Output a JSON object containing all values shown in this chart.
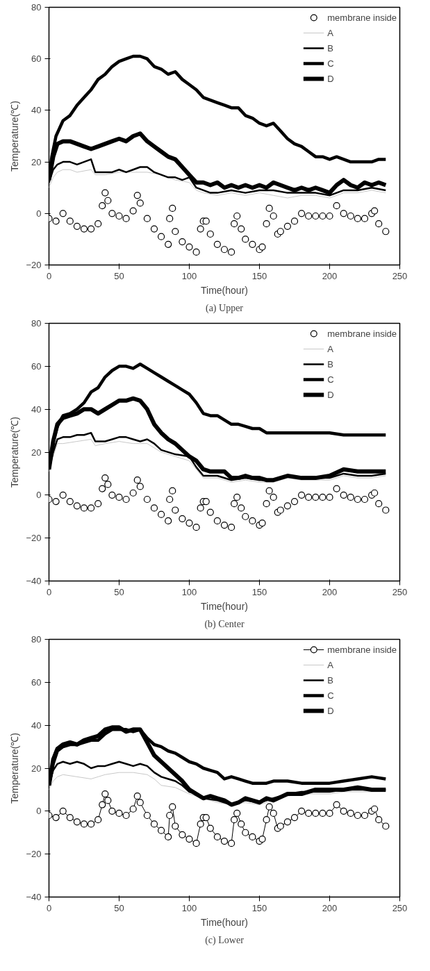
{
  "chart_data": [
    {
      "type": "line",
      "title": "(a) Upper",
      "xlabel": "Time(hour)",
      "ylabel": "Temperature(℃)",
      "xlim": [
        0,
        250
      ],
      "ylim": [
        -20,
        80
      ],
      "xticks": [
        0,
        50,
        100,
        150,
        200,
        250
      ],
      "yticks": [
        -20,
        0,
        20,
        40,
        60,
        80
      ],
      "grid": false,
      "legend": "top right",
      "series": [
        {
          "name": "membrane inside",
          "type": "scatter",
          "marker": "circle",
          "color": "#000000",
          "x": [
            0,
            5,
            10,
            15,
            20,
            25,
            30,
            35,
            38,
            40,
            42,
            45,
            50,
            55,
            60,
            63,
            65,
            70,
            75,
            80,
            85,
            86,
            88,
            90,
            95,
            100,
            105,
            108,
            110,
            112,
            115,
            120,
            125,
            130,
            132,
            134,
            137,
            140,
            145,
            150,
            152,
            155,
            157,
            160,
            163,
            165,
            170,
            175,
            180,
            185,
            190,
            195,
            200,
            205,
            210,
            215,
            220,
            225,
            230,
            232,
            235,
            240
          ],
          "values": [
            -2,
            -3,
            0,
            -3,
            -5,
            -6,
            -6,
            -4,
            3,
            8,
            5,
            0,
            -1,
            -2,
            1,
            7,
            4,
            -2,
            -6,
            -9,
            -12,
            -2,
            2,
            -7,
            -11,
            -13,
            -15,
            -6,
            -3,
            -3,
            -8,
            -12,
            -14,
            -15,
            -4,
            -1,
            -6,
            -10,
            -12,
            -14,
            -13,
            -4,
            2,
            -1,
            -8,
            -7,
            -5,
            -3,
            0,
            -1,
            -1,
            -1,
            -1,
            3,
            0,
            -1,
            -2,
            -2,
            0,
            1,
            -4,
            -7
          ]
        },
        {
          "name": "A",
          "color": "#c8c8c8",
          "x": [
            0,
            3,
            6,
            10,
            15,
            20,
            30,
            33,
            40,
            50,
            60,
            70,
            80,
            90,
            100,
            105,
            110,
            120,
            130,
            140,
            150,
            160,
            170,
            180,
            190,
            200,
            210,
            220,
            230,
            240
          ],
          "values": [
            10,
            14,
            16,
            17,
            17,
            16,
            17,
            15,
            15,
            16,
            16,
            16,
            15,
            13,
            12,
            9,
            8,
            7,
            8,
            7,
            8,
            7,
            6,
            7,
            7,
            6,
            8,
            8,
            9,
            8
          ]
        },
        {
          "name": "B",
          "color": "#000000",
          "x": [
            0,
            3,
            6,
            10,
            15,
            20,
            25,
            30,
            33,
            38,
            45,
            50,
            55,
            60,
            65,
            70,
            75,
            80,
            85,
            90,
            95,
            100,
            105,
            110,
            115,
            120,
            130,
            140,
            150,
            160,
            170,
            180,
            190,
            200,
            210,
            220,
            230,
            240
          ],
          "values": [
            12,
            17,
            19,
            20,
            20,
            19,
            20,
            21,
            16,
            16,
            16,
            17,
            16,
            17,
            18,
            18,
            16,
            15,
            14,
            14,
            13,
            14,
            10,
            9,
            8,
            8,
            9,
            8,
            9,
            9,
            8,
            8,
            8,
            7,
            9,
            9,
            10,
            9
          ]
        },
        {
          "name": "C",
          "color": "#000000",
          "x": [
            0,
            2,
            5,
            10,
            15,
            20,
            25,
            30,
            35,
            40,
            45,
            50,
            55,
            60,
            65,
            70,
            75,
            80,
            85,
            90,
            95,
            100,
            105,
            110,
            115,
            120,
            125,
            130,
            135,
            140,
            145,
            150,
            155,
            160,
            165,
            170,
            175,
            180,
            185,
            190,
            195,
            200,
            205,
            210,
            215,
            220,
            225,
            230,
            235,
            240
          ],
          "values": [
            14,
            22,
            30,
            36,
            38,
            42,
            45,
            48,
            52,
            54,
            57,
            59,
            60,
            61,
            61,
            60,
            57,
            56,
            54,
            55,
            52,
            50,
            48,
            45,
            44,
            43,
            42,
            41,
            41,
            38,
            37,
            35,
            34,
            35,
            32,
            29,
            27,
            26,
            24,
            22,
            22,
            21,
            22,
            21,
            20,
            20,
            20,
            20,
            21,
            21
          ]
        },
        {
          "name": "D",
          "color": "#000000",
          "x": [
            0,
            3,
            6,
            10,
            15,
            20,
            25,
            30,
            35,
            40,
            45,
            50,
            55,
            60,
            65,
            70,
            75,
            80,
            85,
            90,
            95,
            100,
            105,
            110,
            115,
            120,
            125,
            130,
            135,
            140,
            145,
            150,
            155,
            160,
            165,
            170,
            175,
            180,
            185,
            190,
            195,
            200,
            205,
            210,
            215,
            220,
            225,
            230,
            235,
            240
          ],
          "values": [
            13,
            22,
            27,
            28,
            28,
            27,
            26,
            25,
            26,
            27,
            28,
            29,
            28,
            30,
            31,
            28,
            26,
            24,
            22,
            21,
            18,
            15,
            12,
            12,
            11,
            12,
            10,
            11,
            10,
            11,
            10,
            11,
            10,
            12,
            11,
            10,
            9,
            10,
            9,
            10,
            9,
            8,
            11,
            13,
            11,
            10,
            12,
            11,
            12,
            11
          ]
        }
      ]
    },
    {
      "type": "line",
      "title": "(b) Center",
      "xlabel": "Time(hour)",
      "ylabel": "Temperature(℃)",
      "xlim": [
        0,
        250
      ],
      "ylim": [
        -40,
        80
      ],
      "xticks": [
        0,
        50,
        100,
        150,
        200,
        250
      ],
      "yticks": [
        -40,
        -20,
        0,
        20,
        40,
        60,
        80
      ],
      "grid": false,
      "legend": "top right",
      "series": [
        {
          "name": "membrane inside",
          "type": "scatter",
          "marker": "circle",
          "color": "#000000",
          "x": [
            0,
            5,
            10,
            15,
            20,
            25,
            30,
            35,
            38,
            40,
            42,
            45,
            50,
            55,
            60,
            63,
            65,
            70,
            75,
            80,
            85,
            86,
            88,
            90,
            95,
            100,
            105,
            108,
            110,
            112,
            115,
            120,
            125,
            130,
            132,
            134,
            137,
            140,
            145,
            150,
            152,
            155,
            157,
            160,
            163,
            165,
            170,
            175,
            180,
            185,
            190,
            195,
            200,
            205,
            210,
            215,
            220,
            225,
            230,
            232,
            235,
            240
          ],
          "values": [
            -2,
            -3,
            0,
            -3,
            -5,
            -6,
            -6,
            -4,
            3,
            8,
            5,
            0,
            -1,
            -2,
            1,
            7,
            4,
            -2,
            -6,
            -9,
            -12,
            -2,
            2,
            -7,
            -11,
            -13,
            -15,
            -6,
            -3,
            -3,
            -8,
            -12,
            -14,
            -15,
            -4,
            -1,
            -6,
            -10,
            -12,
            -14,
            -13,
            -4,
            2,
            -1,
            -8,
            -7,
            -5,
            -3,
            0,
            -1,
            -1,
            -1,
            -1,
            3,
            0,
            -1,
            -2,
            -2,
            0,
            1,
            -4,
            -7
          ]
        },
        {
          "name": "A",
          "color": "#c8c8c8",
          "x": [
            0,
            3,
            6,
            10,
            20,
            30,
            33,
            40,
            50,
            60,
            70,
            80,
            90,
            100,
            105,
            110,
            120,
            130,
            140,
            150,
            160,
            170,
            180,
            190,
            200,
            210,
            220,
            230,
            240
          ],
          "values": [
            11,
            18,
            24,
            24,
            25,
            26,
            23,
            24,
            25,
            24,
            24,
            20,
            18,
            16,
            12,
            8,
            8,
            6,
            7,
            6,
            6,
            8,
            7,
            7,
            7,
            9,
            8,
            8,
            9
          ]
        },
        {
          "name": "B",
          "color": "#000000",
          "x": [
            0,
            3,
            6,
            10,
            15,
            20,
            25,
            30,
            33,
            40,
            45,
            50,
            55,
            60,
            65,
            70,
            75,
            80,
            90,
            100,
            105,
            110,
            120,
            130,
            140,
            150,
            160,
            170,
            180,
            190,
            200,
            210,
            220,
            230,
            240
          ],
          "values": [
            12,
            20,
            26,
            27,
            27,
            28,
            28,
            29,
            25,
            25,
            26,
            27,
            27,
            26,
            25,
            26,
            24,
            21,
            19,
            18,
            13,
            9,
            9,
            7,
            8,
            7,
            7,
            9,
            8,
            8,
            8,
            10,
            9,
            9,
            10
          ]
        },
        {
          "name": "C",
          "color": "#000000",
          "x": [
            0,
            3,
            6,
            10,
            15,
            20,
            25,
            30,
            35,
            40,
            45,
            50,
            55,
            60,
            65,
            70,
            75,
            80,
            85,
            90,
            95,
            100,
            105,
            110,
            115,
            120,
            125,
            130,
            135,
            140,
            145,
            150,
            155,
            160,
            170,
            180,
            190,
            200,
            210,
            220,
            230,
            240
          ],
          "values": [
            14,
            25,
            32,
            37,
            38,
            40,
            43,
            48,
            50,
            55,
            58,
            60,
            60,
            59,
            61,
            59,
            57,
            55,
            53,
            51,
            49,
            47,
            43,
            38,
            37,
            37,
            35,
            33,
            33,
            32,
            31,
            31,
            29,
            29,
            29,
            29,
            29,
            29,
            28,
            28,
            28,
            28
          ]
        },
        {
          "name": "D",
          "color": "#000000",
          "x": [
            0,
            3,
            6,
            10,
            15,
            20,
            25,
            30,
            35,
            40,
            45,
            50,
            55,
            60,
            65,
            70,
            75,
            80,
            85,
            90,
            95,
            100,
            105,
            110,
            115,
            120,
            125,
            130,
            135,
            140,
            145,
            150,
            155,
            160,
            170,
            180,
            190,
            200,
            210,
            220,
            230,
            240
          ],
          "values": [
            12,
            25,
            33,
            36,
            37,
            38,
            40,
            40,
            38,
            40,
            42,
            44,
            44,
            45,
            44,
            40,
            33,
            29,
            26,
            24,
            21,
            18,
            16,
            12,
            11,
            11,
            11,
            8,
            8,
            9,
            8,
            8,
            7,
            7,
            9,
            8,
            8,
            9,
            12,
            11,
            11,
            11
          ]
        }
      ]
    },
    {
      "type": "line",
      "title": "(c) Lower",
      "xlabel": "Time(hour)",
      "ylabel": "Temperature(℃)",
      "xlim": [
        0,
        250
      ],
      "ylim": [
        -40,
        80
      ],
      "xticks": [
        0,
        50,
        100,
        150,
        200,
        250
      ],
      "yticks": [
        -40,
        -20,
        0,
        20,
        40,
        60,
        80
      ],
      "grid": false,
      "legend": "top right",
      "series": [
        {
          "name": "membrane inside",
          "marker": "circle",
          "color": "#000000",
          "x": [
            0,
            5,
            10,
            15,
            20,
            25,
            30,
            35,
            38,
            40,
            42,
            45,
            50,
            55,
            60,
            63,
            65,
            70,
            75,
            80,
            85,
            86,
            88,
            90,
            95,
            100,
            105,
            108,
            110,
            112,
            115,
            120,
            125,
            130,
            132,
            134,
            137,
            140,
            145,
            150,
            152,
            155,
            157,
            160,
            163,
            165,
            170,
            175,
            180,
            185,
            190,
            195,
            200,
            205,
            210,
            215,
            220,
            225,
            230,
            232,
            235,
            240
          ],
          "values": [
            -2,
            -3,
            0,
            -3,
            -5,
            -6,
            -6,
            -4,
            3,
            8,
            5,
            0,
            -1,
            -2,
            1,
            7,
            4,
            -2,
            -6,
            -9,
            -12,
            -2,
            2,
            -7,
            -11,
            -13,
            -15,
            -6,
            -3,
            -3,
            -8,
            -12,
            -14,
            -15,
            -4,
            -1,
            -6,
            -10,
            -12,
            -14,
            -13,
            -4,
            2,
            -1,
            -8,
            -7,
            -5,
            -3,
            0,
            -1,
            -1,
            -1,
            -1,
            3,
            0,
            -1,
            -2,
            -2,
            0,
            1,
            -4,
            -7
          ]
        },
        {
          "name": "A",
          "color": "#c8c8c8",
          "x": [
            0,
            3,
            6,
            10,
            20,
            30,
            35,
            40,
            50,
            60,
            70,
            75,
            80,
            90,
            100,
            110,
            120,
            130,
            140,
            150,
            160,
            170,
            180,
            190,
            200,
            210,
            220,
            230,
            240
          ],
          "values": [
            10,
            14,
            16,
            17,
            16,
            15,
            16,
            17,
            18,
            18,
            17,
            15,
            12,
            11,
            8,
            6,
            4,
            3,
            4,
            3,
            5,
            7,
            8,
            8,
            8,
            9,
            9,
            9,
            9
          ]
        },
        {
          "name": "B",
          "color": "#000000",
          "x": [
            0,
            3,
            6,
            10,
            15,
            20,
            25,
            30,
            35,
            40,
            45,
            50,
            55,
            60,
            65,
            70,
            75,
            80,
            85,
            90,
            95,
            100,
            105,
            110,
            120,
            130,
            140,
            150,
            160,
            170,
            180,
            190,
            200,
            210,
            220,
            230,
            240
          ],
          "values": [
            12,
            19,
            22,
            23,
            22,
            23,
            22,
            20,
            21,
            21,
            22,
            23,
            22,
            21,
            22,
            21,
            18,
            16,
            15,
            14,
            12,
            9,
            8,
            6,
            5,
            3,
            5,
            4,
            6,
            8,
            9,
            9,
            9,
            10,
            10,
            10,
            10
          ]
        },
        {
          "name": "C",
          "color": "#000000",
          "x": [
            0,
            3,
            6,
            10,
            15,
            20,
            25,
            30,
            35,
            40,
            45,
            50,
            55,
            60,
            65,
            70,
            75,
            80,
            85,
            90,
            95,
            100,
            105,
            110,
            115,
            120,
            125,
            130,
            135,
            140,
            145,
            150,
            155,
            160,
            170,
            180,
            190,
            200,
            210,
            220,
            230,
            240
          ],
          "values": [
            12,
            22,
            28,
            30,
            31,
            31,
            32,
            33,
            33,
            36,
            38,
            38,
            38,
            37,
            38,
            34,
            31,
            30,
            28,
            27,
            25,
            23,
            22,
            20,
            19,
            18,
            15,
            16,
            15,
            14,
            13,
            13,
            13,
            14,
            14,
            13,
            13,
            13,
            14,
            15,
            16,
            15
          ]
        },
        {
          "name": "D",
          "color": "#000000",
          "x": [
            0,
            3,
            6,
            10,
            15,
            20,
            25,
            30,
            35,
            40,
            45,
            50,
            55,
            60,
            65,
            70,
            75,
            80,
            85,
            90,
            95,
            100,
            105,
            110,
            115,
            120,
            125,
            130,
            135,
            140,
            145,
            150,
            155,
            160,
            170,
            180,
            190,
            200,
            210,
            220,
            230,
            240
          ],
          "values": [
            12,
            24,
            29,
            31,
            32,
            31,
            33,
            34,
            35,
            38,
            39,
            39,
            37,
            38,
            38,
            32,
            26,
            23,
            20,
            17,
            14,
            10,
            8,
            6,
            7,
            6,
            5,
            3,
            4,
            6,
            5,
            4,
            6,
            5,
            8,
            8,
            10,
            10,
            10,
            11,
            10,
            10
          ]
        }
      ]
    }
  ]
}
